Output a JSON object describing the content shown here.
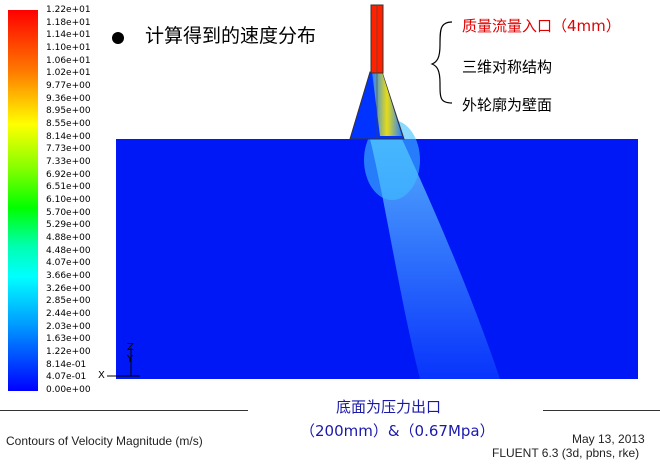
{
  "colorbar": {
    "labels": [
      "1.22e+01",
      "1.18e+01",
      "1.14e+01",
      "1.10e+01",
      "1.06e+01",
      "1.02e+01",
      "9.77e+00",
      "9.36e+00",
      "8.95e+00",
      "8.55e+00",
      "8.14e+00",
      "7.73e+00",
      "7.33e+00",
      "6.92e+00",
      "6.51e+00",
      "6.10e+00",
      "5.70e+00",
      "5.29e+00",
      "4.88e+00",
      "4.48e+00",
      "4.07e+00",
      "3.66e+00",
      "3.26e+00",
      "2.85e+00",
      "2.44e+00",
      "2.03e+00",
      "1.63e+00",
      "1.22e+00",
      "8.14e-01",
      "4.07e-01",
      "0.00e+00"
    ]
  },
  "title": "计算得到的速度分布",
  "annotations": {
    "inlet": "质量流量入口（4mm）",
    "symmetric": "三维对称结构",
    "wall": "外轮廓为壁面"
  },
  "bottom_annotation": {
    "line1": "底面为压力出口",
    "line2": "（200mm）&（0.67Mpa）"
  },
  "axes": {
    "y": "Y",
    "z": "Z",
    "x": "X"
  },
  "footer": {
    "left": "Contours of Velocity Magnitude (m/s)",
    "date": "May 13, 2013",
    "solver": "FLUENT 6.3 (3d, pbns, rke)"
  }
}
